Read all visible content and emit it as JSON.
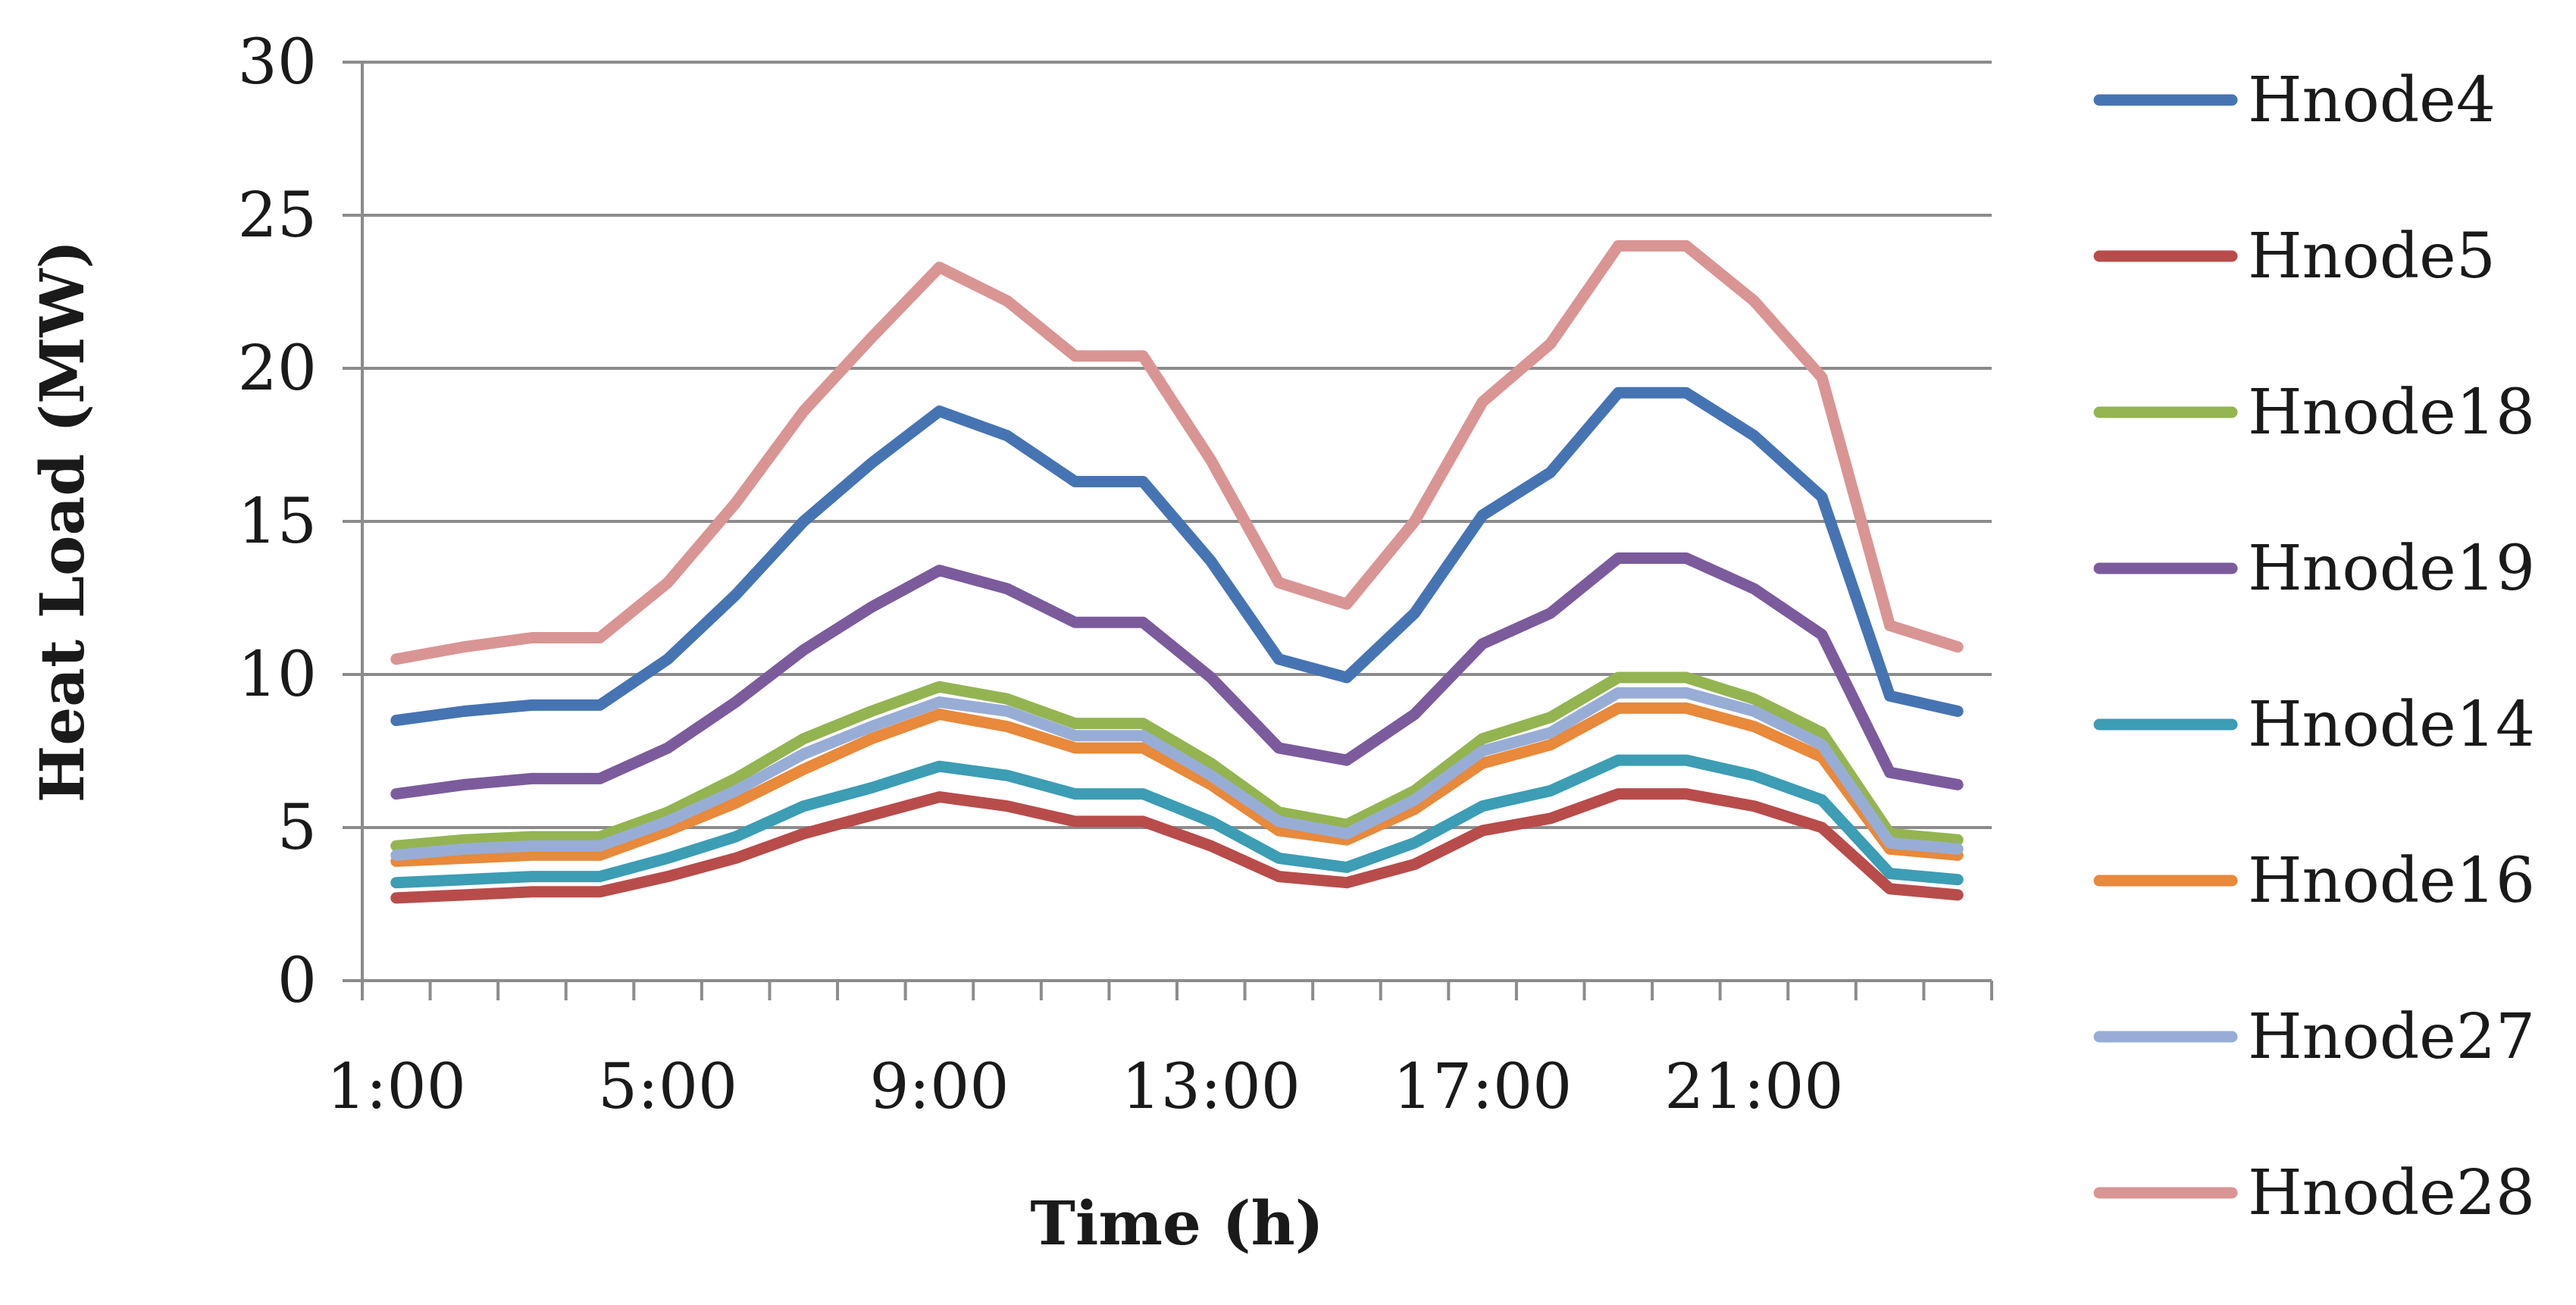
{
  "chart_data": {
    "type": "line",
    "title": "",
    "xlabel": "Time (h)",
    "ylabel": "Heat Load (MW)",
    "ylim": [
      0,
      30
    ],
    "yticks": [
      0,
      5,
      10,
      15,
      20,
      25,
      30
    ],
    "grid": "horizontal",
    "legend_position": "right",
    "x": [
      "1:00",
      "2:00",
      "3:00",
      "4:00",
      "5:00",
      "6:00",
      "7:00",
      "8:00",
      "9:00",
      "10:00",
      "11:00",
      "12:00",
      "13:00",
      "14:00",
      "15:00",
      "16:00",
      "17:00",
      "18:00",
      "19:00",
      "20:00",
      "21:00",
      "22:00",
      "23:00",
      "24:00"
    ],
    "xtick_labels": [
      "1:00",
      "5:00",
      "9:00",
      "13:00",
      "17:00",
      "21:00"
    ],
    "series": [
      {
        "name": "Hnode4",
        "color": "#4674B3",
        "values": [
          8.5,
          8.8,
          9.0,
          9.0,
          10.5,
          12.6,
          15.0,
          16.9,
          18.6,
          17.8,
          16.3,
          16.3,
          13.7,
          10.5,
          9.9,
          12.0,
          15.2,
          16.6,
          19.2,
          19.2,
          17.8,
          15.8,
          9.3,
          8.8
        ]
      },
      {
        "name": "Hnode5",
        "color": "#B84C4B",
        "values": [
          2.7,
          2.8,
          2.9,
          2.9,
          3.4,
          4.0,
          4.8,
          5.4,
          6.0,
          5.7,
          5.2,
          5.2,
          4.4,
          3.4,
          3.2,
          3.8,
          4.9,
          5.3,
          6.1,
          6.1,
          5.7,
          5.0,
          3.0,
          2.8
        ]
      },
      {
        "name": "Hnode18",
        "color": "#94B452",
        "values": [
          4.4,
          4.6,
          4.7,
          4.7,
          5.5,
          6.6,
          7.9,
          8.8,
          9.6,
          9.2,
          8.4,
          8.4,
          7.1,
          5.5,
          5.1,
          6.2,
          7.9,
          8.6,
          9.9,
          9.9,
          9.2,
          8.1,
          4.8,
          4.6
        ]
      },
      {
        "name": "Hnode19",
        "color": "#7B5B9C",
        "values": [
          6.1,
          6.4,
          6.6,
          6.6,
          7.6,
          9.1,
          10.8,
          12.2,
          13.4,
          12.8,
          11.7,
          11.7,
          9.9,
          7.6,
          7.2,
          8.7,
          11.0,
          12.0,
          13.8,
          13.8,
          12.8,
          11.3,
          6.8,
          6.4
        ]
      },
      {
        "name": "Hnode14",
        "color": "#3C9DB4",
        "values": [
          3.2,
          3.3,
          3.4,
          3.4,
          4.0,
          4.7,
          5.7,
          6.3,
          7.0,
          6.7,
          6.1,
          6.1,
          5.2,
          4.0,
          3.7,
          4.5,
          5.7,
          6.2,
          7.2,
          7.2,
          6.7,
          5.9,
          3.5,
          3.3
        ]
      },
      {
        "name": "Hnode16",
        "color": "#E8893B",
        "values": [
          3.9,
          4.0,
          4.1,
          4.1,
          4.9,
          5.8,
          6.9,
          7.9,
          8.7,
          8.3,
          7.6,
          7.6,
          6.4,
          4.9,
          4.6,
          5.6,
          7.1,
          7.7,
          8.9,
          8.9,
          8.3,
          7.3,
          4.3,
          4.1
        ]
      },
      {
        "name": "Hnode27",
        "color": "#98ADD6",
        "values": [
          4.1,
          4.3,
          4.4,
          4.4,
          5.2,
          6.2,
          7.4,
          8.3,
          9.1,
          8.8,
          8.0,
          8.0,
          6.7,
          5.2,
          4.8,
          5.9,
          7.5,
          8.1,
          9.4,
          9.4,
          8.8,
          7.7,
          4.5,
          4.3
        ]
      },
      {
        "name": "Hnode28",
        "color": "#D99594",
        "values": [
          10.5,
          10.9,
          11.2,
          11.2,
          13.0,
          15.6,
          18.6,
          21.0,
          23.3,
          22.2,
          20.4,
          20.4,
          17.0,
          13.0,
          12.3,
          15.0,
          18.9,
          20.8,
          24.0,
          24.0,
          22.2,
          19.7,
          11.6,
          10.9
        ]
      }
    ]
  }
}
